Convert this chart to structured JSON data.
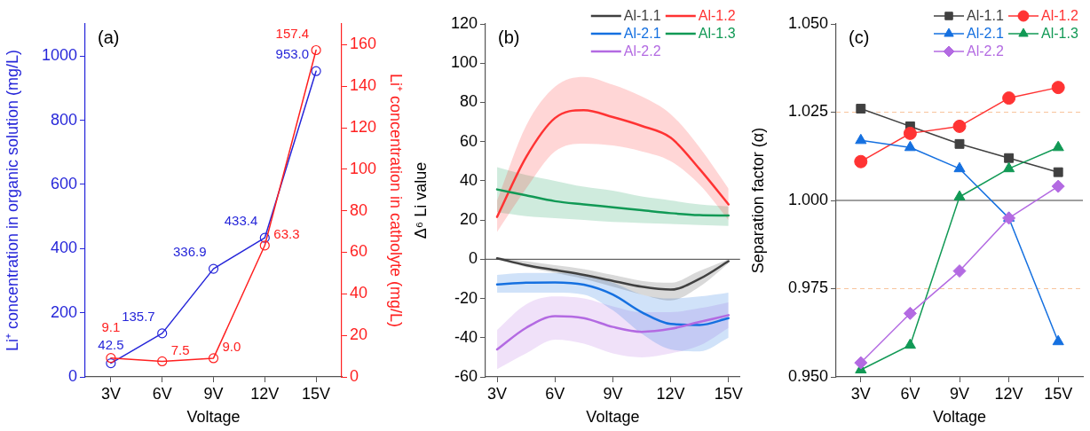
{
  "chart_data": [
    {
      "type": "line",
      "categories": [
        "3V",
        "6V",
        "9V",
        "12V",
        "15V"
      ],
      "xlabel": "Voltage",
      "ylabel": "Li⁺ concentration in organic solution (mg/L)",
      "y2label": "Li⁺ concentration in catholyte (mg/L)",
      "ylim": [
        0,
        1100
      ],
      "yticks": [
        0,
        200,
        400,
        600,
        800,
        1000
      ],
      "y2lim": [
        0,
        170
      ],
      "y2ticks": [
        0,
        20,
        40,
        60,
        80,
        100,
        120,
        140,
        160
      ],
      "marker": "circle",
      "legend": false,
      "grid": false,
      "annotations": [
        "(a)"
      ],
      "series": [
        {
          "color": "#2626d9",
          "values": [
            42.5,
            135.7,
            336.9,
            433.4,
            953.0
          ],
          "value_labels": [
            "42.5",
            "135.7",
            "336.9",
            "433.4",
            "953.0"
          ]
        },
        {
          "color": "#ff2020",
          "axis": "y2",
          "values": [
            9.1,
            7.5,
            9.0,
            63.3,
            157.4
          ],
          "value_labels": [
            "9.1",
            "7.5",
            "9.0",
            "63.3",
            "157.4"
          ]
        }
      ]
    },
    {
      "type": "line",
      "x": [
        3,
        4.5,
        6,
        7.5,
        9,
        10.5,
        12,
        13.5,
        15
      ],
      "xlim": [
        2.4,
        15.6
      ],
      "xticks": [
        {
          "value": 3,
          "label": "3V"
        },
        {
          "value": 6,
          "label": "6V"
        },
        {
          "value": 9,
          "label": "9V"
        },
        {
          "value": 12,
          "label": "12V"
        },
        {
          "value": 15,
          "label": "15V"
        }
      ],
      "ylim": [
        -60,
        120
      ],
      "yticks": [
        -60,
        -40,
        -20,
        0,
        20,
        40,
        60,
        80,
        100,
        120
      ],
      "xlabel": "Voltage",
      "ylabel": "Δ⁶ Li value",
      "marker": "none",
      "legend": "top right",
      "grid": false,
      "annotations": [
        "(b)"
      ],
      "ref_lines": [
        {
          "axis": "y",
          "value": 0,
          "color": "#404040"
        }
      ],
      "series": [
        {
          "name": "Al-1.1",
          "color": "#404040",
          "values": [
            0.5,
            -3,
            -5.5,
            -8,
            -11,
            -14,
            -15.5,
            -10,
            -1
          ],
          "lower": [
            0,
            -4,
            -7,
            -10,
            -14,
            -18,
            -21,
            -14,
            -2
          ],
          "upper": [
            1,
            -1,
            -3,
            -5,
            -8,
            -11,
            -12,
            -6,
            0
          ]
        },
        {
          "name": "Al-1.2",
          "color": "#ff3333",
          "values": [
            21.6,
            52,
            72,
            76,
            72.5,
            68,
            62,
            46,
            28
          ],
          "lower": [
            14,
            36,
            55,
            59,
            58,
            55,
            50,
            38,
            20
          ],
          "upper": [
            30,
            68,
            88,
            93,
            89,
            83,
            74,
            57,
            36
          ]
        },
        {
          "name": "Al-2.1",
          "color": "#1570e0",
          "values": [
            -12.8,
            -12,
            -11.8,
            -13,
            -18,
            -27,
            -33,
            -33.5,
            -30
          ],
          "lower": [
            -17,
            -17,
            -17,
            -18,
            -26,
            -38,
            -46,
            -47,
            -40
          ],
          "upper": [
            -8,
            -7,
            -7,
            -8,
            -12,
            -18,
            -20,
            -19,
            -17
          ]
        },
        {
          "name": "Al-1.3",
          "color": "#119955",
          "values": [
            35.6,
            32.6,
            29.6,
            28,
            26.5,
            25,
            23.5,
            22.5,
            22.3
          ],
          "lower": [
            24,
            22,
            21,
            20,
            19,
            18.5,
            18,
            17.5,
            17
          ],
          "upper": [
            47,
            43,
            40,
            37,
            35,
            32,
            30,
            28,
            27
          ]
        },
        {
          "name": "Al-2.2",
          "color": "#b36ae2",
          "values": [
            -46,
            -35,
            -29,
            -30,
            -34.5,
            -37,
            -35.5,
            -32,
            -28.5
          ],
          "lower": [
            -56,
            -48,
            -41,
            -43,
            -48,
            -50,
            -48,
            -44,
            -35
          ],
          "upper": [
            -36,
            -23,
            -19,
            -20,
            -24,
            -27,
            -27,
            -25,
            -22
          ]
        }
      ]
    },
    {
      "type": "line",
      "categories": [
        "3V",
        "6V",
        "9V",
        "12V",
        "15V"
      ],
      "xlabel": "Voltage",
      "ylabel": "Separation factor (α)",
      "ylim": [
        0.95,
        1.05
      ],
      "yticks": [
        {
          "value": 0.95,
          "label": "0.950"
        },
        {
          "value": 0.975,
          "label": "0.975"
        },
        {
          "value": 1.0,
          "label": "1.000"
        },
        {
          "value": 1.025,
          "label": "1.025"
        },
        {
          "value": 1.05,
          "label": "1.050"
        }
      ],
      "legend": "top right",
      "grid": false,
      "annotations": [
        "(c)"
      ],
      "ref_lines": [
        {
          "axis": "y",
          "value": 1.0,
          "color": "#404040"
        },
        {
          "axis": "y",
          "value": 1.025,
          "color": "#f8c49c",
          "line_style": "dashed"
        },
        {
          "axis": "y",
          "value": 0.975,
          "color": "#f8c49c",
          "line_style": "dashed"
        }
      ],
      "series": [
        {
          "name": "Al-1.1",
          "color": "#404040",
          "marker": "square",
          "values": [
            1.026,
            1.021,
            1.016,
            1.012,
            1.008
          ]
        },
        {
          "name": "Al-1.2",
          "color": "#ff3333",
          "marker": "circle",
          "values": [
            1.011,
            1.019,
            1.021,
            1.029,
            1.032
          ]
        },
        {
          "name": "Al-2.1",
          "color": "#1570e0",
          "marker": "triangle",
          "values": [
            1.017,
            1.015,
            1.009,
            0.995,
            0.96
          ]
        },
        {
          "name": "Al-1.3",
          "color": "#119955",
          "marker": "triangle",
          "values": [
            0.952,
            0.959,
            1.001,
            1.009,
            1.015
          ]
        },
        {
          "name": "Al-2.2",
          "color": "#b36ae2",
          "marker": "diamond",
          "values": [
            0.954,
            0.968,
            0.98,
            0.995,
            1.004
          ]
        }
      ]
    }
  ]
}
